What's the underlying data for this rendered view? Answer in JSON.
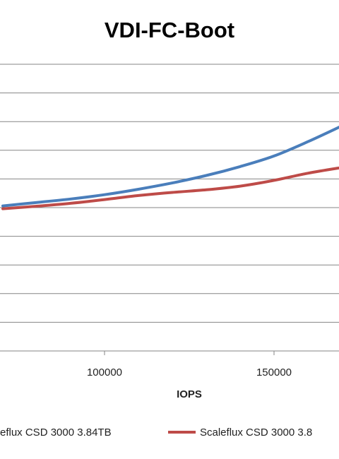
{
  "chart_data": {
    "type": "line",
    "title": "VDI-FC-Boot",
    "xlabel": "IOPS",
    "ylabel": "",
    "x_ticks": [
      "100000",
      "150000"
    ],
    "x_tick_values": [
      100000,
      150000
    ],
    "xlim": [
      70000,
      170000
    ],
    "ylim": [
      0,
      10
    ],
    "grid": true,
    "legend_position": "bottom",
    "series": [
      {
        "name": "eflux CSD 3000 3.84TB",
        "color": "#4a7ebb",
        "x": [
          70000,
          80000,
          90000,
          100000,
          110000,
          120000,
          130000,
          140000,
          150000,
          160000,
          170000
        ],
        "y": [
          5.06,
          5.18,
          5.3,
          5.45,
          5.64,
          5.86,
          6.12,
          6.43,
          6.8,
          7.3,
          7.85
        ]
      },
      {
        "name": "Scaleflux CSD 3000 3.8",
        "color": "#be4b48",
        "x": [
          70000,
          80000,
          90000,
          100000,
          110000,
          120000,
          130000,
          140000,
          150000,
          160000,
          170000
        ],
        "y": [
          4.96,
          5.05,
          5.15,
          5.28,
          5.42,
          5.53,
          5.62,
          5.75,
          5.95,
          6.2,
          6.4
        ]
      }
    ]
  }
}
